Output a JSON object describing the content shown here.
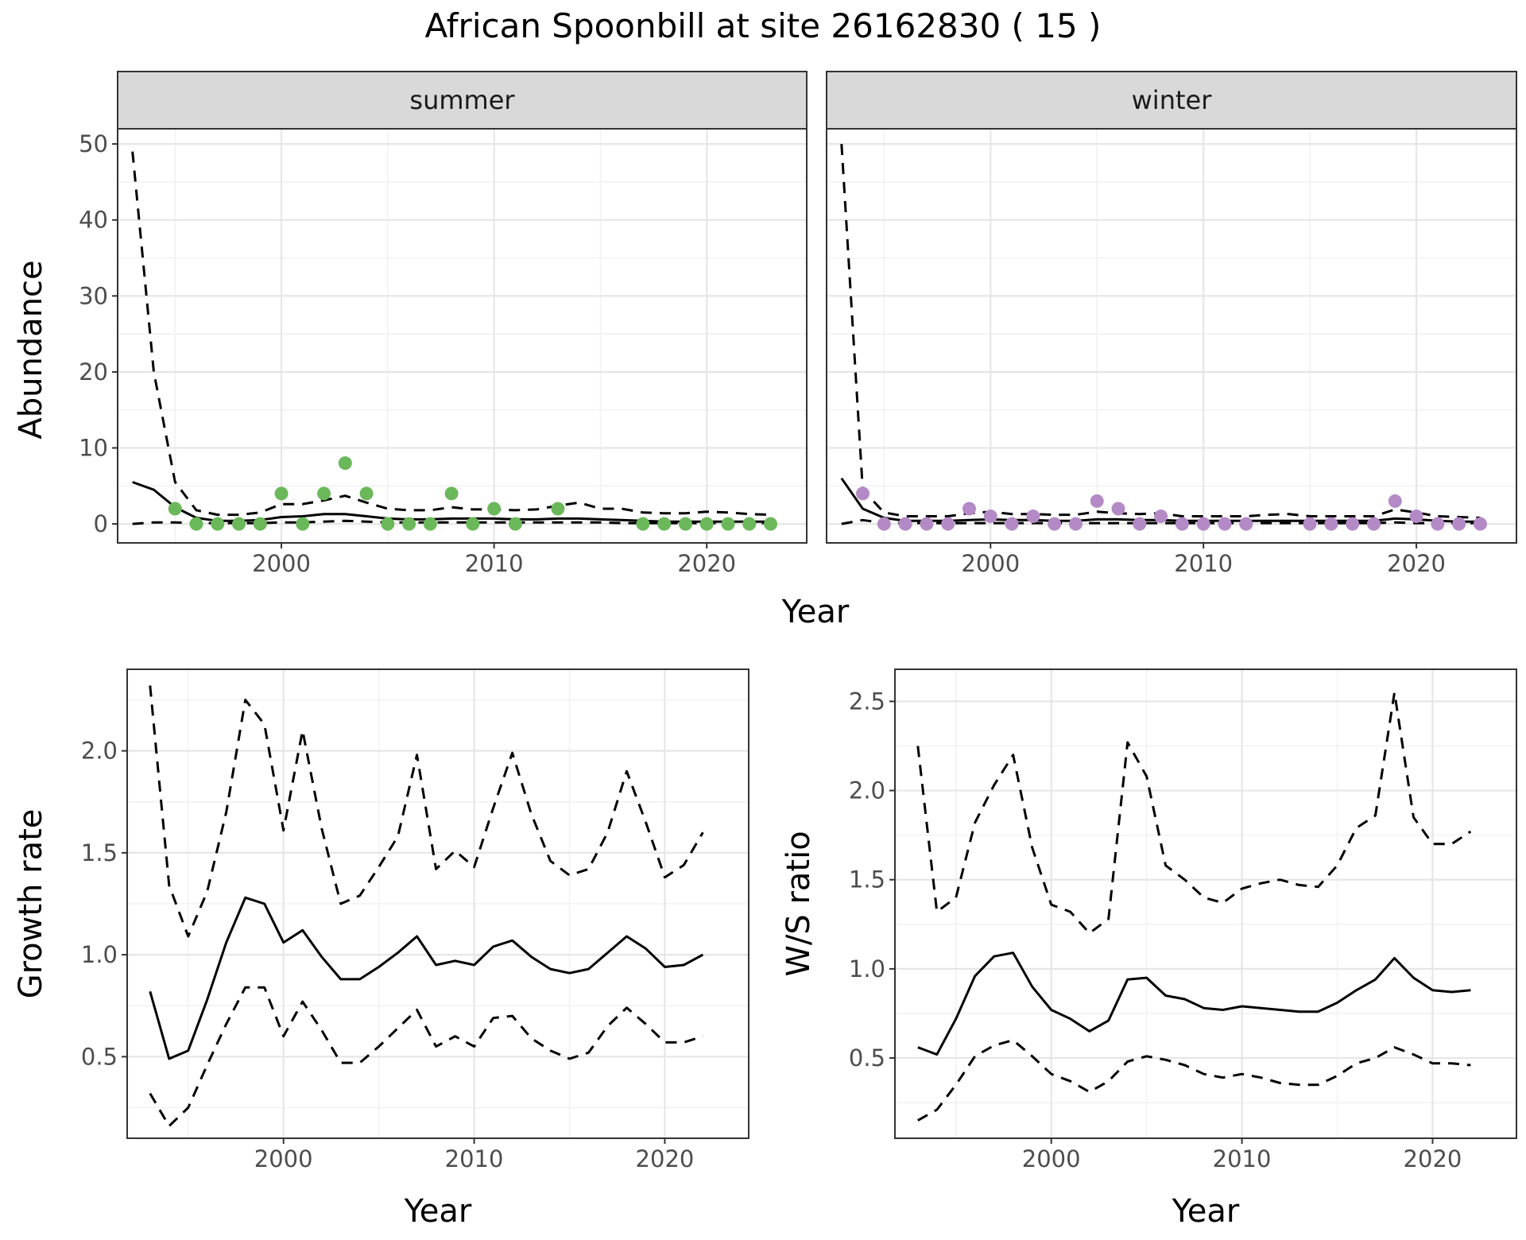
{
  "title": "African Spoonbill at site 26162830 ( 15 )",
  "colors": {
    "summer_points": "#6ab85a",
    "winter_points": "#b48ac6",
    "line": "#000000",
    "strip_bg": "#d9d9d9"
  },
  "chart_data": [
    {
      "type": "line",
      "panel": "summer",
      "strip_label": "summer",
      "xlabel": "Year",
      "ylabel": "Abundance",
      "xlim": [
        1992.3,
        2024.7
      ],
      "ylim": [
        -2.5,
        52
      ],
      "xticks": [
        "2000",
        "2010",
        "2020"
      ],
      "yticks": [
        "0",
        "10",
        "20",
        "30",
        "40",
        "50"
      ],
      "fit": {
        "x": [
          1993,
          1994,
          1995,
          1996,
          1997,
          1998,
          1999,
          2000,
          2001,
          2002,
          2003,
          2004,
          2005,
          2006,
          2007,
          2008,
          2009,
          2010,
          2011,
          2012,
          2013,
          2014,
          2015,
          2016,
          2017,
          2018,
          2019,
          2020,
          2021,
          2022,
          2023
        ],
        "mid": [
          5.5,
          4.5,
          2.2,
          0.8,
          0.4,
          0.4,
          0.5,
          0.9,
          1.0,
          1.3,
          1.3,
          1.0,
          0.7,
          0.6,
          0.6,
          0.7,
          0.7,
          0.7,
          0.6,
          0.6,
          0.7,
          0.7,
          0.6,
          0.5,
          0.4,
          0.3,
          0.3,
          0.3,
          0.3,
          0.3,
          0.3
        ],
        "upper": [
          49,
          20,
          5.5,
          1.8,
          1.2,
          1.2,
          1.5,
          2.6,
          2.6,
          3.1,
          3.7,
          2.8,
          2.0,
          1.8,
          1.8,
          2.2,
          1.9,
          1.9,
          1.8,
          1.9,
          2.4,
          2.8,
          2.0,
          2.0,
          1.5,
          1.4,
          1.4,
          1.6,
          1.5,
          1.3,
          1.2
        ],
        "lower": [
          0,
          0.2,
          0.2,
          0.1,
          0.1,
          0.1,
          0.1,
          0.2,
          0.2,
          0.3,
          0.4,
          0.3,
          0.2,
          0.2,
          0.2,
          0.2,
          0.2,
          0.2,
          0.2,
          0.2,
          0.2,
          0.2,
          0.2,
          0.1,
          0.1,
          0.1,
          0.1,
          0.1,
          0.1,
          0.1,
          0.1
        ]
      },
      "points": {
        "x": [
          1995,
          1996,
          1997,
          1998,
          1999,
          2000,
          2001,
          2002,
          2003,
          2004,
          2005,
          2006,
          2007,
          2008,
          2009,
          2010,
          2011,
          2013,
          2017,
          2018,
          2019,
          2020,
          2021,
          2022,
          2023
        ],
        "y": [
          2,
          0,
          0,
          0,
          0,
          4,
          0,
          4,
          8,
          4,
          0,
          0,
          0,
          4,
          0,
          2,
          0,
          2,
          0,
          0,
          0,
          0,
          0,
          0,
          0
        ]
      }
    },
    {
      "type": "line",
      "panel": "winter",
      "strip_label": "winter",
      "xlabel": "Year",
      "ylabel": "Abundance",
      "xlim": [
        1992.3,
        2024.7
      ],
      "ylim": [
        -2.5,
        52
      ],
      "xticks": [
        "2000",
        "2010",
        "2020"
      ],
      "yticks": [
        "0",
        "10",
        "20",
        "30",
        "40",
        "50"
      ],
      "fit": {
        "x": [
          1993,
          1994,
          1995,
          1996,
          1997,
          1998,
          1999,
          2000,
          2001,
          2002,
          2003,
          2004,
          2005,
          2006,
          2007,
          2008,
          2009,
          2010,
          2011,
          2012,
          2013,
          2014,
          2015,
          2016,
          2017,
          2018,
          2019,
          2020,
          2021,
          2022,
          2023
        ],
        "mid": [
          6.0,
          2.0,
          0.8,
          0.4,
          0.4,
          0.4,
          0.5,
          0.6,
          0.5,
          0.5,
          0.4,
          0.4,
          0.6,
          0.6,
          0.5,
          0.5,
          0.4,
          0.4,
          0.4,
          0.4,
          0.4,
          0.4,
          0.4,
          0.4,
          0.4,
          0.4,
          0.7,
          0.6,
          0.4,
          0.3,
          0.3
        ],
        "upper": [
          50,
          4.5,
          1.5,
          1.0,
          1.0,
          1.0,
          1.4,
          1.6,
          1.3,
          1.3,
          1.2,
          1.2,
          1.6,
          1.4,
          1.3,
          1.4,
          1.0,
          1.0,
          1.0,
          1.0,
          1.2,
          1.3,
          1.0,
          1.0,
          1.0,
          1.0,
          1.9,
          1.5,
          1.0,
          0.9,
          0.8
        ],
        "lower": [
          0,
          0.5,
          0.1,
          0.1,
          0.1,
          0.1,
          0.1,
          0.1,
          0.1,
          0.1,
          0.1,
          0.1,
          0.1,
          0.1,
          0.1,
          0.1,
          0.1,
          0.1,
          0.1,
          0.1,
          0.1,
          0.1,
          0.1,
          0.1,
          0.1,
          0.1,
          0.2,
          0.1,
          0.1,
          0.1,
          0.1
        ]
      },
      "points": {
        "x": [
          1994,
          1995,
          1996,
          1997,
          1998,
          1999,
          2000,
          2001,
          2002,
          2003,
          2004,
          2005,
          2006,
          2007,
          2008,
          2009,
          2010,
          2011,
          2012,
          2015,
          2016,
          2017,
          2018,
          2019,
          2020,
          2021,
          2022,
          2023
        ],
        "y": [
          4,
          0,
          0,
          0,
          0,
          2,
          1,
          0,
          1,
          0,
          0,
          3,
          2,
          0,
          1,
          0,
          0,
          0,
          0,
          0,
          0,
          0,
          0,
          3,
          1,
          0,
          0,
          0
        ]
      }
    },
    {
      "type": "line",
      "panel": "growth",
      "xlabel": "Year",
      "ylabel": "Growth rate",
      "xlim": [
        1991.8,
        2024.4
      ],
      "ylim": [
        0.1,
        2.4
      ],
      "xticks": [
        "2000",
        "2010",
        "2020"
      ],
      "yticks": [
        "0.5",
        "1.0",
        "1.5",
        "2.0"
      ],
      "x": [
        1993,
        1994,
        1995,
        1996,
        1997,
        1998,
        1999,
        2000,
        2001,
        2002,
        2003,
        2004,
        2005,
        2006,
        2007,
        2008,
        2009,
        2010,
        2011,
        2012,
        2013,
        2014,
        2015,
        2016,
        2017,
        2018,
        2019,
        2020,
        2021,
        2022
      ],
      "mid": [
        0.82,
        0.49,
        0.53,
        0.78,
        1.06,
        1.28,
        1.25,
        1.06,
        1.12,
        0.99,
        0.88,
        0.88,
        0.94,
        1.01,
        1.09,
        0.95,
        0.97,
        0.95,
        1.04,
        1.07,
        0.99,
        0.93,
        0.91,
        0.93,
        1.01,
        1.09,
        1.03,
        0.94,
        0.95,
        1.0
      ],
      "upper": [
        2.32,
        1.34,
        1.09,
        1.31,
        1.7,
        2.25,
        2.13,
        1.61,
        2.1,
        1.62,
        1.25,
        1.29,
        1.43,
        1.58,
        1.98,
        1.42,
        1.51,
        1.43,
        1.72,
        1.99,
        1.69,
        1.46,
        1.39,
        1.42,
        1.6,
        1.9,
        1.65,
        1.38,
        1.44,
        1.6
      ],
      "lower": [
        0.32,
        0.16,
        0.25,
        0.46,
        0.66,
        0.84,
        0.84,
        0.6,
        0.77,
        0.63,
        0.47,
        0.47,
        0.55,
        0.64,
        0.73,
        0.55,
        0.6,
        0.55,
        0.69,
        0.7,
        0.59,
        0.53,
        0.49,
        0.52,
        0.65,
        0.74,
        0.66,
        0.57,
        0.57,
        0.6
      ]
    },
    {
      "type": "line",
      "panel": "ws_ratio",
      "xlabel": "Year",
      "ylabel": "W/S ratio",
      "xlim": [
        1991.8,
        2024.4
      ],
      "ylim": [
        0.05,
        2.68
      ],
      "xticks": [
        "2000",
        "2010",
        "2020"
      ],
      "yticks": [
        "0.5",
        "1.0",
        "1.5",
        "2.0",
        "2.5"
      ],
      "x": [
        1993,
        1994,
        1995,
        1996,
        1997,
        1998,
        1999,
        2000,
        2001,
        2002,
        2003,
        2004,
        2005,
        2006,
        2007,
        2008,
        2009,
        2010,
        2011,
        2012,
        2013,
        2014,
        2015,
        2016,
        2017,
        2018,
        2019,
        2020,
        2021,
        2022
      ],
      "mid": [
        0.56,
        0.52,
        0.72,
        0.96,
        1.07,
        1.09,
        0.9,
        0.77,
        0.72,
        0.65,
        0.71,
        0.94,
        0.95,
        0.85,
        0.83,
        0.78,
        0.77,
        0.79,
        0.78,
        0.77,
        0.76,
        0.76,
        0.81,
        0.88,
        0.94,
        1.06,
        0.95,
        0.88,
        0.87,
        0.88
      ],
      "upper": [
        2.25,
        1.32,
        1.4,
        1.82,
        2.03,
        2.2,
        1.68,
        1.36,
        1.32,
        1.2,
        1.28,
        2.27,
        2.08,
        1.58,
        1.5,
        1.4,
        1.37,
        1.45,
        1.48,
        1.5,
        1.47,
        1.46,
        1.58,
        1.79,
        1.86,
        2.55,
        1.85,
        1.7,
        1.7,
        1.77
      ],
      "lower": [
        0.15,
        0.21,
        0.35,
        0.51,
        0.57,
        0.6,
        0.51,
        0.41,
        0.37,
        0.31,
        0.37,
        0.48,
        0.51,
        0.49,
        0.46,
        0.41,
        0.39,
        0.41,
        0.39,
        0.36,
        0.35,
        0.35,
        0.4,
        0.47,
        0.5,
        0.56,
        0.52,
        0.47,
        0.47,
        0.46
      ]
    }
  ]
}
